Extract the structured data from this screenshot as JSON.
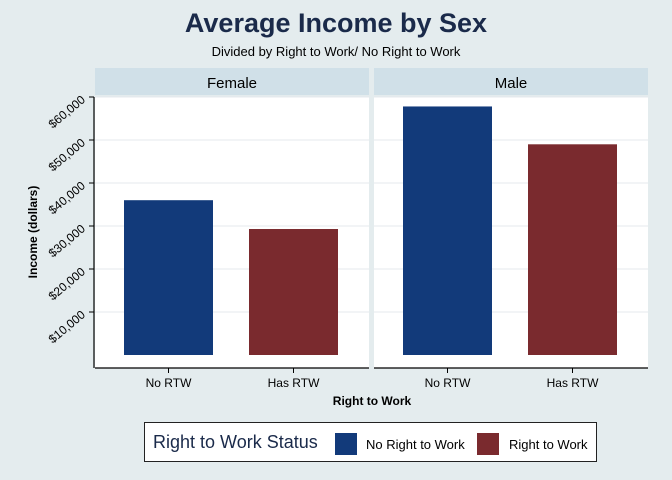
{
  "chart_data": {
    "type": "bar",
    "title": "Average Income by Sex",
    "subtitle": "Divided by Right to Work/ No Right to Work",
    "xlabel": "Right to Work",
    "ylabel": "Income (dollars)",
    "ylim": [
      0,
      63000
    ],
    "yticks": [
      10000,
      20000,
      30000,
      40000,
      50000,
      60000
    ],
    "ytick_labels": [
      "$10,000",
      "$20,000",
      "$30,000",
      "$40,000",
      "$50,000",
      "$60,000"
    ],
    "categories": [
      "No RTW",
      "Has RTW"
    ],
    "colors": {
      "No RTW": "#123a7a",
      "Has RTW": "#7a2a2e"
    },
    "panels": [
      {
        "label": "Female",
        "values": [
          36000,
          29300
        ]
      },
      {
        "label": "Male",
        "values": [
          57800,
          49000
        ]
      }
    ],
    "legend": {
      "title": "Right to Work Status",
      "entries": [
        "No Right to Work",
        "Right to Work"
      ],
      "position": "bottom"
    }
  }
}
